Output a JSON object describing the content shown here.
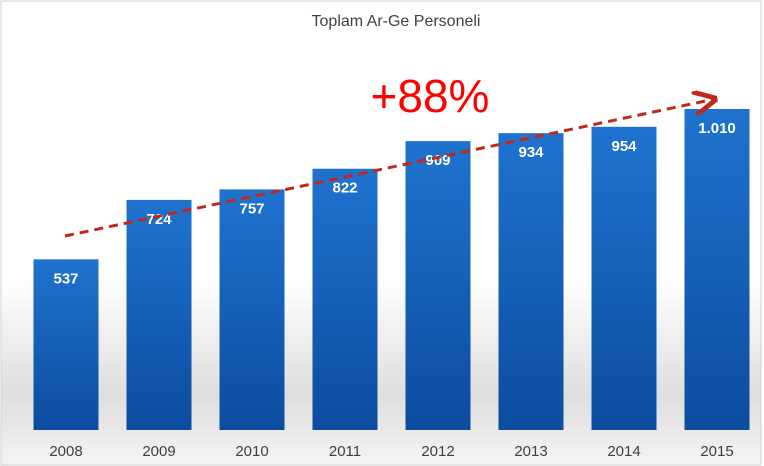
{
  "chart_data": {
    "type": "bar",
    "title": "Toplam Ar-Ge Personeli",
    "annotation": "+88%",
    "categories": [
      "2008",
      "2009",
      "2010",
      "2011",
      "2012",
      "2013",
      "2014",
      "2015"
    ],
    "values": [
      537,
      724,
      757,
      822,
      909,
      934,
      954,
      1010
    ],
    "value_labels": [
      "537",
      "724",
      "757",
      "822",
      "909",
      "934",
      "954",
      "1.010"
    ],
    "color": "#1565c0",
    "annotation_color": "#ff0000"
  }
}
